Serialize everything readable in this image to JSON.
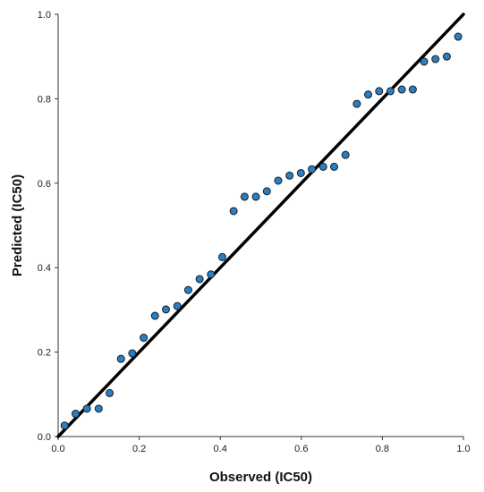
{
  "chart_data": {
    "type": "scatter",
    "xlabel": "Observed (IC50)",
    "ylabel": "Predicted (IC50)",
    "xlim": [
      0.0,
      1.0
    ],
    "ylim": [
      0.0,
      1.0
    ],
    "x_ticks": [
      "0.0",
      "0.2",
      "0.4",
      "0.6",
      "0.8",
      "1.0"
    ],
    "y_ticks": [
      "0.0",
      "0.2",
      "0.4",
      "0.6",
      "0.8",
      "1.0"
    ],
    "grid": false,
    "reference_line": {
      "from": [
        0.0,
        0.0
      ],
      "to": [
        1.0,
        1.0
      ],
      "color": "#000000"
    },
    "point_color": "#2a7fc4",
    "point_edge_color": "#1a1a1a",
    "points": [
      {
        "x": 0.016,
        "y": 0.026
      },
      {
        "x": 0.043,
        "y": 0.054
      },
      {
        "x": 0.071,
        "y": 0.066
      },
      {
        "x": 0.1,
        "y": 0.066
      },
      {
        "x": 0.127,
        "y": 0.103
      },
      {
        "x": 0.155,
        "y": 0.184
      },
      {
        "x": 0.183,
        "y": 0.197
      },
      {
        "x": 0.211,
        "y": 0.234
      },
      {
        "x": 0.239,
        "y": 0.286
      },
      {
        "x": 0.266,
        "y": 0.301
      },
      {
        "x": 0.294,
        "y": 0.309
      },
      {
        "x": 0.321,
        "y": 0.347
      },
      {
        "x": 0.349,
        "y": 0.373
      },
      {
        "x": 0.377,
        "y": 0.384
      },
      {
        "x": 0.405,
        "y": 0.425
      },
      {
        "x": 0.433,
        "y": 0.534
      },
      {
        "x": 0.46,
        "y": 0.568
      },
      {
        "x": 0.488,
        "y": 0.568
      },
      {
        "x": 0.515,
        "y": 0.581
      },
      {
        "x": 0.543,
        "y": 0.606
      },
      {
        "x": 0.571,
        "y": 0.618
      },
      {
        "x": 0.599,
        "y": 0.624
      },
      {
        "x": 0.626,
        "y": 0.633
      },
      {
        "x": 0.654,
        "y": 0.639
      },
      {
        "x": 0.681,
        "y": 0.639
      },
      {
        "x": 0.709,
        "y": 0.667
      },
      {
        "x": 0.737,
        "y": 0.788
      },
      {
        "x": 0.765,
        "y": 0.81
      },
      {
        "x": 0.792,
        "y": 0.818
      },
      {
        "x": 0.82,
        "y": 0.818
      },
      {
        "x": 0.848,
        "y": 0.822
      },
      {
        "x": 0.875,
        "y": 0.822
      },
      {
        "x": 0.903,
        "y": 0.888
      },
      {
        "x": 0.931,
        "y": 0.894
      },
      {
        "x": 0.959,
        "y": 0.9
      },
      {
        "x": 0.987,
        "y": 0.947
      }
    ]
  }
}
